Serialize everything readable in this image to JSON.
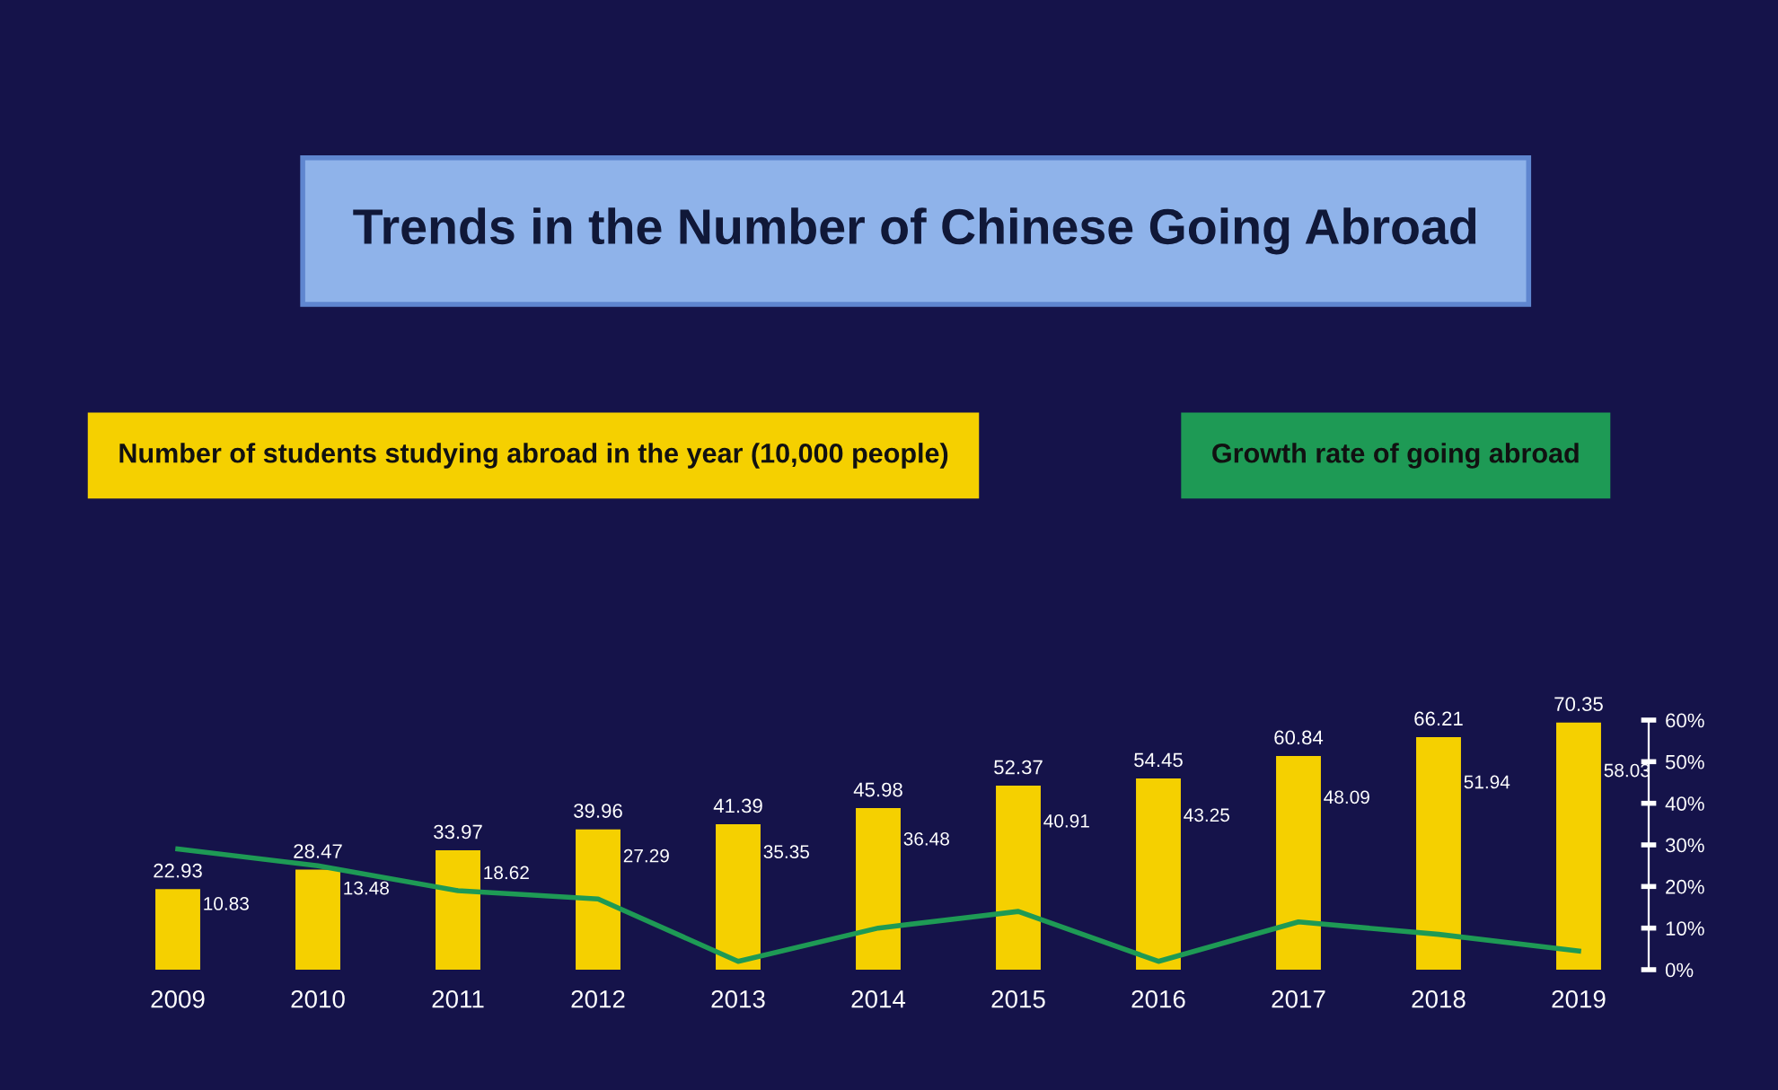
{
  "chart_data": {
    "type": "bar",
    "title": "Trends in the Number of Chinese Going Abroad",
    "categories": [
      "2009",
      "2010",
      "2011",
      "2012",
      "2013",
      "2014",
      "2015",
      "2016",
      "2017",
      "2018",
      "2019"
    ],
    "series": [
      {
        "name": "Number of students studying abroad in the year (10,000 people)",
        "color": "#f5d000",
        "values": [
          22.93,
          28.47,
          33.97,
          39.96,
          41.39,
          45.98,
          52.37,
          54.45,
          60.84,
          66.21,
          70.35
        ],
        "value_labels": [
          "22.93",
          "28.47",
          "33.97",
          "39.96",
          "41.39",
          "45.98",
          "52.37",
          "54.45",
          "60.84",
          "66.21",
          "70.35"
        ]
      },
      {
        "name": "Growth rate of going abroad",
        "type": "line",
        "axis": "y2",
        "color": "#1e9a55",
        "values": [
          29,
          25,
          19,
          17,
          2,
          10,
          14,
          2,
          11.5,
          8.5,
          4.5
        ]
      }
    ],
    "annotations": [
      "10.83",
      "13.48",
      "18.62",
      "27.29",
      "35.35",
      "36.48",
      "40.91",
      "43.25",
      "48.09",
      "51.94",
      "58.03"
    ],
    "y2lim": [
      0,
      60
    ],
    "y2ticks": [
      {
        "value": 0,
        "label": "0%"
      },
      {
        "value": 10,
        "label": "10%"
      },
      {
        "value": 20,
        "label": "20%"
      },
      {
        "value": 30,
        "label": "30%"
      },
      {
        "value": 40,
        "label": "40%"
      },
      {
        "value": 50,
        "label": "50%"
      },
      {
        "value": 60,
        "label": "60%"
      }
    ],
    "grid": false,
    "legend": "top",
    "marker": "none"
  }
}
